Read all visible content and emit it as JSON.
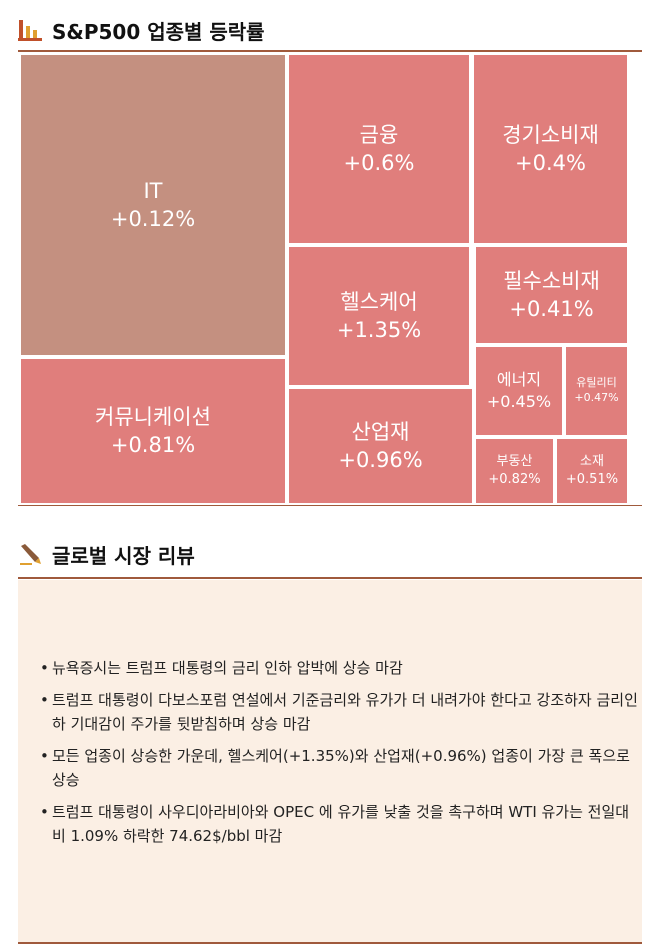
{
  "treemap_section": {
    "title": "S&P500 업종별 등락률",
    "icon": "bar-chart-icon",
    "sectors": [
      {
        "name": "IT",
        "change": "+0.12%",
        "color": "#c49080"
      },
      {
        "name": "금융",
        "change": "+0.6%",
        "color": "#e07e7c"
      },
      {
        "name": "경기소비재",
        "change": "+0.4%",
        "color": "#e07e7c"
      },
      {
        "name": "헬스케어",
        "change": "+1.35%",
        "color": "#e07e7c"
      },
      {
        "name": "필수소비재",
        "change": "+0.41%",
        "color": "#e07e7c"
      },
      {
        "name": "커뮤니케이션",
        "change": "+0.81%",
        "color": "#e07e7c"
      },
      {
        "name": "산업재",
        "change": "+0.96%",
        "color": "#e07e7c"
      },
      {
        "name": "에너지",
        "change": "+0.45%",
        "color": "#e07e7c"
      },
      {
        "name": "유틸리티",
        "change": "+0.47%",
        "color": "#e07e7c"
      },
      {
        "name": "부동산",
        "change": "+0.82%",
        "color": "#e07e7c"
      },
      {
        "name": "소재",
        "change": "+0.51%",
        "color": "#e07e7c"
      }
    ]
  },
  "review_section": {
    "title": "글로벌 시장 리뷰",
    "icon": "pencil-icon",
    "bullets": [
      "뉴욕증시는 트럼프 대통령의 금리 인하 압박에 상승 마감",
      "트럼프 대통령이 다보스포럼 연설에서 기준금리와 유가가 더 내려가야 한다고 강조하자 금리인하 기대감이 주가를 뒷받침하며 상승 마감",
      "모든 업종이 상승한 가운데, 헬스케어(+1.35%)와 산업재(+0.96%) 업종이 가장 큰 폭으로 상승",
      "트럼프 대통령이 사우디아라비아와 OPEC 에 유가를 낮출 것을 촉구하며 WTI 유가는 전일대비 1.09% 하락한 74.62$/bbl 마감"
    ]
  },
  "colors": {
    "accent": "#a05a3c",
    "tile": "#e07e7c",
    "it_tile": "#c49080",
    "review_bg": "#fbefe4"
  }
}
